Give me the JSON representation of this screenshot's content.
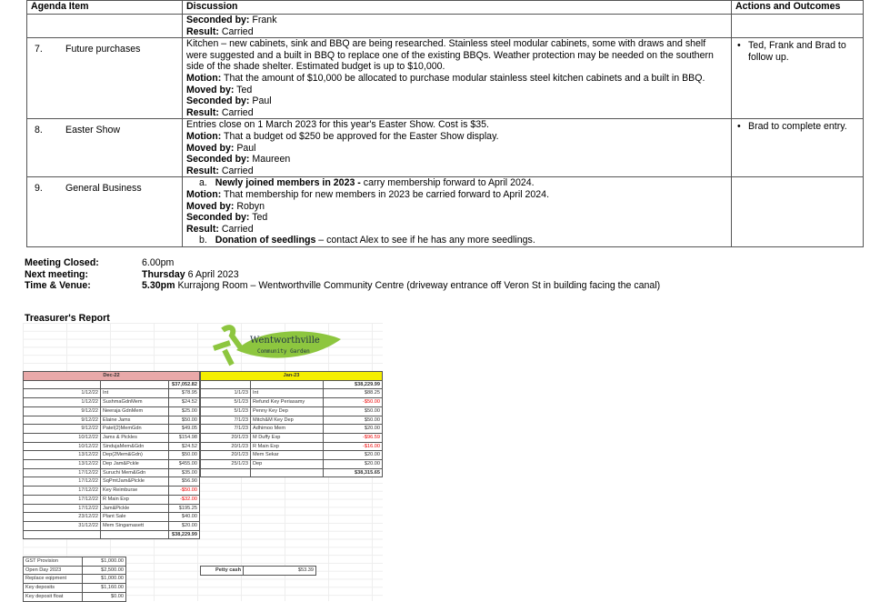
{
  "agenda": {
    "headers": [
      "Agenda Item",
      "Discussion",
      "Actions and Outcomes"
    ],
    "cont": {
      "seconded_label": "Seconded by:",
      "seconded": " Frank",
      "result_label": "Result:",
      "result": " Carried"
    },
    "items": [
      {
        "num": "7.",
        "title": "Future purchases",
        "text": "Kitchen – new cabinets, sink and BBQ are being researched. Stainless steel modular cabinets, some with draws and shelf were suggested and a built in BBQ to replace one of the existing BBQs. Weather protection may be needed on the southern side of the shade shelter. Estimated budget is up to $10,000.",
        "motion": " That the amount of $10,000 be allocated to purchase modular stainless steel kitchen cabinets and a built in BBQ.",
        "moved": " Ted",
        "seconded": " Paul",
        "result": " Carried",
        "action": "Ted, Frank and Brad to follow up."
      },
      {
        "num": "8.",
        "title": "Easter Show",
        "text": "Entries close on 1 March 2023 for this year's Easter Show. Cost is $35.",
        "motion": " That a budget od $250 be approved for the Easter Show display.",
        "moved": " Paul",
        "seconded": " Maureen",
        "result": " Carried",
        "action": "Brad to complete entry."
      },
      {
        "num": "9.",
        "title": "General Business",
        "sub_a_marker": "a.",
        "sub_a_bold": "Newly joined members in 2023 -",
        "sub_a_text": " carry membership forward to April 2024.",
        "motion": " That membership for new members in 2023 be carried forward to April 2024.",
        "moved": " Robyn",
        "seconded": " Ted",
        "result": " Carried",
        "sub_b_marker": "b.",
        "sub_b_bold": "Donation of seedlings",
        "sub_b_text": " – contact Alex to see if he has any more seedlings."
      }
    ],
    "labels": {
      "motion": "Motion:",
      "moved": "Moved by:",
      "seconded": "Seconded by:",
      "result": "Result:"
    }
  },
  "footer": {
    "closed_label": "Meeting Closed:",
    "closed": "6.00pm",
    "next_label": "Next meeting:",
    "next_bold": "Thursday",
    "next": " 6 April 2023",
    "venue_label": "Time & Venue:",
    "venue_bold": "5.30pm",
    "venue": " Kurrajong Room – Wentworthville Community Centre (driveway entrance off Veron St in building facing the canal)"
  },
  "treasurer": {
    "title": "Treasurer's Report",
    "logo_text": [
      "Wentworthville",
      "Community Garden"
    ],
    "logo_color": "#8dc63f",
    "dec": {
      "header": "Dec-22",
      "opening": "$37,052.82",
      "closing": "$38,229.99",
      "rows": [
        [
          "1/12/22",
          "Int",
          "$78.95"
        ],
        [
          "1/12/22",
          "SushmaGdnMem",
          "$24.52"
        ],
        [
          "9/12/22",
          "Neeraja GdnMem",
          "$25.00"
        ],
        [
          "9/12/22",
          "Elaine Jams",
          "$50.00"
        ],
        [
          "9/12/22",
          "Patel(2)MemGdn",
          "$49.05"
        ],
        [
          "10/12/22",
          "Jams & Pickles",
          "$154.98"
        ],
        [
          "10/12/22",
          "SindujaMem&Gdn",
          "$24.52"
        ],
        [
          "13/12/22",
          "Dep(2Mem&Gdn)",
          "$50.00"
        ],
        [
          "13/12/22",
          "Dep Jam&Pckle",
          "$455.00"
        ],
        [
          "17/12/22",
          "Suruchi Mem&Gdn",
          "$35.00"
        ],
        [
          "17/12/22",
          "SqPmtJam&Pickle",
          "$56.90"
        ],
        [
          "17/12/22",
          "Key Reimburse",
          "-$50.00"
        ],
        [
          "17/12/22",
          "R Main Exp",
          "-$32.00"
        ],
        [
          "17/12/22",
          "Jam&Pickle",
          "$195.25"
        ],
        [
          "23/12/22",
          "Plant Sale",
          "$40.00"
        ],
        [
          "31/12/22",
          "Mem Singamasett",
          "$20.00"
        ]
      ]
    },
    "jan": {
      "header": "Jan-23",
      "opening": "$38,229.99",
      "closing": "$38,315.65",
      "rows": [
        [
          "1/1/23",
          "Int",
          "$88.25"
        ],
        [
          "5/1/23",
          "Refund Key Periasamy",
          "-$50.00"
        ],
        [
          "5/1/23",
          "Penny Key Dep",
          "$50.00"
        ],
        [
          "7/1/23",
          "Mitch&M Key Dep",
          "$50.00"
        ],
        [
          "7/1/23",
          "Adhimoo Mem",
          "$20.00"
        ],
        [
          "20/1/23",
          "M Duffy Exp",
          "-$96.59"
        ],
        [
          "20/1/23",
          "R Main Exp",
          "-$16.00"
        ],
        [
          "20/1/23",
          "Mem Sekar",
          "$20.00"
        ],
        [
          "25/1/23",
          "Dep",
          "$20.00"
        ]
      ]
    },
    "provisions": [
      [
        "GST Provision",
        "$1,000.00"
      ],
      [
        "Open Day 2023",
        "$2,500.00"
      ],
      [
        "Replace eqipment",
        "$1,000.00"
      ],
      [
        "Key deposits",
        "$1,160.00"
      ],
      [
        "Key deposit float",
        "$0.00"
      ]
    ],
    "petty_cash": {
      "label": "Petty cash",
      "value": "$53.39"
    },
    "negative_color": "#e00000"
  }
}
